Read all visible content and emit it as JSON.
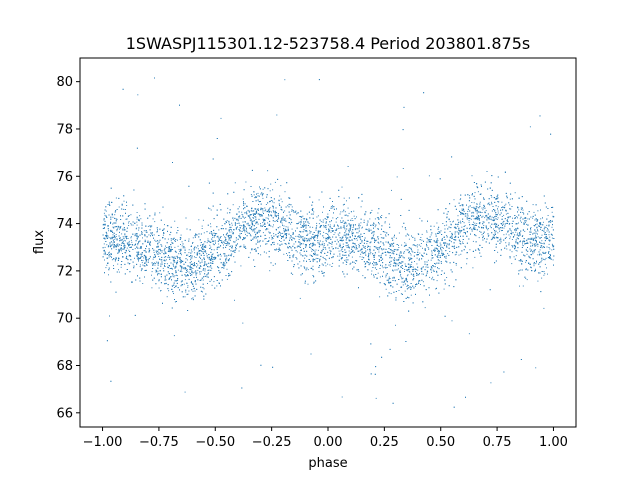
{
  "chart_data": {
    "type": "scatter",
    "title": "1SWASPJ115301.12-523758.4 Period 203801.875s",
    "xlabel": "phase",
    "ylabel": "flux",
    "xlim": [
      -1.1,
      1.1
    ],
    "ylim": [
      65.4,
      81.0
    ],
    "xticks": [
      -1.0,
      -0.75,
      -0.5,
      -0.25,
      0.0,
      0.25,
      0.5,
      0.75,
      1.0
    ],
    "xtick_labels": [
      "−1.00",
      "−0.75",
      "−0.50",
      "−0.25",
      "0.00",
      "0.25",
      "0.50",
      "0.75",
      "1.00"
    ],
    "yticks": [
      66,
      68,
      70,
      72,
      74,
      76,
      78,
      80
    ],
    "ytick_labels": [
      "66",
      "68",
      "70",
      "72",
      "74",
      "76",
      "78",
      "80"
    ],
    "grid": false,
    "marker_color": "#1f77b4",
    "series": [
      {
        "x": [
          -1.0,
          -0.95,
          -0.9,
          -0.85,
          -0.8,
          -0.75,
          -0.7,
          -0.65,
          -0.6,
          -0.55,
          -0.5,
          -0.45,
          -0.4,
          -0.35,
          -0.3,
          -0.25,
          -0.2,
          -0.15,
          -0.1,
          -0.05,
          0.0,
          0.05,
          0.1,
          0.15,
          0.2,
          0.25,
          0.3,
          0.35,
          0.4,
          0.45,
          0.5,
          0.55,
          0.6,
          0.65,
          0.7,
          0.75,
          0.8,
          0.85,
          0.9,
          0.95,
          1.0
        ],
        "y": [
          73.3,
          73.4,
          73.3,
          73.2,
          73.0,
          72.8,
          72.4,
          72.3,
          72.4,
          72.6,
          72.9,
          73.2,
          73.8,
          74.2,
          74.3,
          74.1,
          73.8,
          73.5,
          73.3,
          73.2,
          73.3,
          73.4,
          73.3,
          73.2,
          73.0,
          72.8,
          72.4,
          72.3,
          72.4,
          72.6,
          72.9,
          73.2,
          73.8,
          74.2,
          74.3,
          74.1,
          73.8,
          73.5,
          73.3,
          73.2,
          73.3
        ]
      }
    ]
  }
}
